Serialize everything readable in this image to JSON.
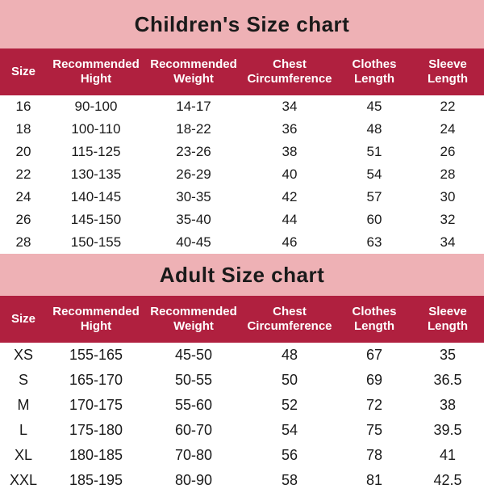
{
  "colors": {
    "pink_bg": "#eeb1b5",
    "header_bg": "#b0203f",
    "white": "#ffffff",
    "black": "#1a1a1a",
    "row_stripe": "#ffffff"
  },
  "children": {
    "title": "Children's Size chart",
    "title_height": 60,
    "columns": [
      {
        "key": "size",
        "label": "Size",
        "class": "col-size"
      },
      {
        "key": "hight",
        "label": "Recommended Hight",
        "class": "col-hight"
      },
      {
        "key": "weight",
        "label": "Recommended Weight",
        "class": "col-weight"
      },
      {
        "key": "chest",
        "label": "Chest Circumference",
        "class": "col-chest"
      },
      {
        "key": "clothes",
        "label": "Clothes Length",
        "class": "col-clothes"
      },
      {
        "key": "sleeve",
        "label": "Sleeve Length",
        "class": "col-sleeve"
      }
    ],
    "rows": [
      {
        "size": "16",
        "hight": "90-100",
        "weight": "14-17",
        "chest": "34",
        "clothes": "45",
        "sleeve": "22"
      },
      {
        "size": "18",
        "hight": "100-110",
        "weight": "18-22",
        "chest": "36",
        "clothes": "48",
        "sleeve": "24"
      },
      {
        "size": "20",
        "hight": "115-125",
        "weight": "23-26",
        "chest": "38",
        "clothes": "51",
        "sleeve": "26"
      },
      {
        "size": "22",
        "hight": "130-135",
        "weight": "26-29",
        "chest": "40",
        "clothes": "54",
        "sleeve": "28"
      },
      {
        "size": "24",
        "hight": "140-145",
        "weight": "30-35",
        "chest": "42",
        "clothes": "57",
        "sleeve": "30"
      },
      {
        "size": "26",
        "hight": "145-150",
        "weight": "35-40",
        "chest": "44",
        "clothes": "60",
        "sleeve": "32"
      },
      {
        "size": "28",
        "hight": "150-155",
        "weight": "40-45",
        "chest": "46",
        "clothes": "63",
        "sleeve": "34"
      }
    ]
  },
  "adult": {
    "title": "Adult Size chart",
    "title_height": 52,
    "columns": [
      {
        "key": "size",
        "label": "Size",
        "class": "col-size"
      },
      {
        "key": "hight",
        "label": "Recommended Hight",
        "class": "col-hight"
      },
      {
        "key": "weight",
        "label": "Recommended Weight",
        "class": "col-weight"
      },
      {
        "key": "chest",
        "label": "Chest Circumference",
        "class": "col-chest"
      },
      {
        "key": "clothes",
        "label": "Clothes Length",
        "class": "col-clothes"
      },
      {
        "key": "sleeve",
        "label": "Sleeve Length",
        "class": "col-sleeve"
      }
    ],
    "rows": [
      {
        "size": "XS",
        "hight": "155-165",
        "weight": "45-50",
        "chest": "48",
        "clothes": "67",
        "sleeve": "35"
      },
      {
        "size": "S",
        "hight": "165-170",
        "weight": "50-55",
        "chest": "50",
        "clothes": "69",
        "sleeve": "36.5"
      },
      {
        "size": "M",
        "hight": "170-175",
        "weight": "55-60",
        "chest": "52",
        "clothes": "72",
        "sleeve": "38"
      },
      {
        "size": "L",
        "hight": "175-180",
        "weight": "60-70",
        "chest": "54",
        "clothes": "75",
        "sleeve": "39.5"
      },
      {
        "size": "XL",
        "hight": "180-185",
        "weight": "70-80",
        "chest": "56",
        "clothes": "78",
        "sleeve": "41"
      },
      {
        "size": "XXL",
        "hight": "185-195",
        "weight": "80-90",
        "chest": "58",
        "clothes": "81",
        "sleeve": "42.5"
      }
    ]
  }
}
